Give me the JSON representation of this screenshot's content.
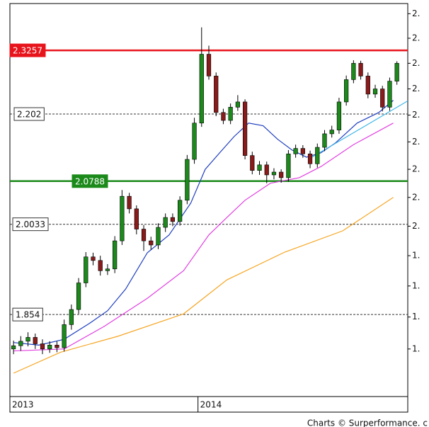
{
  "chart_data": {
    "type": "candlestick",
    "log_scale": true,
    "up_color": "#1b8a1b",
    "down_color": "#8b1a1a",
    "x": [
      1,
      3,
      5,
      7,
      9,
      11,
      13,
      15,
      17,
      19,
      21,
      23,
      25,
      27,
      29,
      31,
      33,
      35,
      37,
      39,
      41,
      43,
      45,
      47,
      49,
      51,
      53,
      55,
      57,
      59,
      61,
      63,
      65,
      67,
      69,
      71,
      73,
      75,
      77,
      79,
      81,
      83,
      85,
      87,
      89,
      91,
      93,
      95,
      97,
      99,
      101,
      103,
      105,
      107
    ],
    "open": [
      1.8,
      1.805,
      1.812,
      1.818,
      1.808,
      1.8,
      1.806,
      1.802,
      1.838,
      1.862,
      1.905,
      1.948,
      1.942,
      1.925,
      1.928,
      1.975,
      2.052,
      2.03,
      1.995,
      1.975,
      1.968,
      1.998,
      2.015,
      2.008,
      2.045,
      2.118,
      2.185,
      2.318,
      2.275,
      2.205,
      2.19,
      2.215,
      2.225,
      2.125,
      2.098,
      2.108,
      2.09,
      2.095,
      2.085,
      2.128,
      2.138,
      2.128,
      2.11,
      2.14,
      2.165,
      2.172,
      2.225,
      2.268,
      2.3,
      2.275,
      2.24,
      2.25,
      2.215,
      2.265
    ],
    "high": [
      1.813,
      1.82,
      1.826,
      1.824,
      1.815,
      1.812,
      1.812,
      1.846,
      1.87,
      1.913,
      1.956,
      1.955,
      1.95,
      1.936,
      1.983,
      2.063,
      2.058,
      2.036,
      2.002,
      1.982,
      2.005,
      2.022,
      2.022,
      2.052,
      2.126,
      2.195,
      2.372,
      2.335,
      2.282,
      2.212,
      2.222,
      2.238,
      2.23,
      2.132,
      2.115,
      2.114,
      2.102,
      2.1,
      2.135,
      2.145,
      2.144,
      2.134,
      2.147,
      2.172,
      2.18,
      2.233,
      2.276,
      2.306,
      2.305,
      2.282,
      2.258,
      2.256,
      2.272,
      2.304
    ],
    "low": [
      1.792,
      1.797,
      1.804,
      1.8,
      1.792,
      1.794,
      1.795,
      1.796,
      1.83,
      1.855,
      1.898,
      1.934,
      1.917,
      1.918,
      1.921,
      1.968,
      2.022,
      1.986,
      1.958,
      1.96,
      1.961,
      1.99,
      2.0,
      2.001,
      2.038,
      2.11,
      2.178,
      2.268,
      2.198,
      2.183,
      2.183,
      2.208,
      2.118,
      2.091,
      2.09,
      2.075,
      2.082,
      2.076,
      2.078,
      2.121,
      2.121,
      2.102,
      2.103,
      2.133,
      2.158,
      2.165,
      2.218,
      2.261,
      2.268,
      2.232,
      2.233,
      2.207,
      2.208,
      2.258
    ],
    "close": [
      1.805,
      1.812,
      1.818,
      1.808,
      1.8,
      1.806,
      1.802,
      1.838,
      1.862,
      1.905,
      1.948,
      1.942,
      1.925,
      1.928,
      1.975,
      2.052,
      2.03,
      1.995,
      1.975,
      1.968,
      1.998,
      2.015,
      2.008,
      2.045,
      2.118,
      2.185,
      2.318,
      2.275,
      2.205,
      2.19,
      2.215,
      2.225,
      2.125,
      2.098,
      2.108,
      2.09,
      2.095,
      2.085,
      2.128,
      2.138,
      2.128,
      2.11,
      2.14,
      2.165,
      2.172,
      2.225,
      2.268,
      2.3,
      2.275,
      2.24,
      2.25,
      2.215,
      2.265,
      2.3
    ],
    "lines": [
      {
        "color": "#1f3fbf",
        "x": [
          1,
          8,
          15,
          22,
          27,
          32,
          38,
          44,
          50,
          54,
          58,
          62,
          66,
          70,
          74,
          78,
          82,
          86,
          90,
          96,
          102,
          106
        ],
        "values": [
          1.81,
          1.806,
          1.815,
          1.84,
          1.86,
          1.895,
          1.955,
          1.985,
          2.04,
          2.1,
          2.13,
          2.16,
          2.185,
          2.18,
          2.155,
          2.135,
          2.122,
          2.13,
          2.148,
          2.185,
          2.205,
          2.228
        ]
      },
      {
        "color": "#e040e0",
        "x": [
          1,
          15,
          26,
          38,
          48,
          55,
          60,
          65,
          72,
          80,
          86,
          95,
          106
        ],
        "values": [
          1.797,
          1.8,
          1.835,
          1.88,
          1.925,
          1.985,
          2.015,
          2.045,
          2.075,
          2.085,
          2.105,
          2.145,
          2.185
        ]
      },
      {
        "color": "#f5a623",
        "x": [
          1,
          14,
          30,
          48,
          60,
          76,
          92,
          106
        ],
        "values": [
          1.763,
          1.795,
          1.82,
          1.855,
          1.91,
          1.956,
          1.992,
          2.05
        ]
      },
      {
        "color": "#3fb6e8",
        "x": [
          83,
          110
        ],
        "values": [
          2.12,
          2.227
        ]
      }
    ],
    "levels": [
      {
        "value": 2.3257,
        "color": "#e8141c",
        "style": "solid"
      },
      {
        "value": 2.202,
        "color": "#333333",
        "style": "dashed"
      },
      {
        "value": 2.0788,
        "color": "#1b8a1b",
        "style": "solid"
      },
      {
        "value": 2.0033,
        "color": "#333333",
        "style": "dashed"
      },
      {
        "value": 1.854,
        "color": "#333333",
        "style": "dashed"
      }
    ],
    "xlim": [
      0,
      110
    ],
    "xticks": [
      {
        "value": 0,
        "label": "2013"
      },
      {
        "value": 52,
        "label": "2014"
      }
    ],
    "ylim": [
      1.728,
      2.421
    ],
    "yticks": [
      {
        "value": 2.4,
        "label": "2."
      },
      {
        "value": 2.35,
        "label": "2."
      },
      {
        "value": 2.3,
        "label": "2."
      },
      {
        "value": 2.25,
        "label": "2."
      },
      {
        "value": 2.2,
        "label": "2."
      },
      {
        "value": 2.15,
        "label": "2."
      },
      {
        "value": 2.1,
        "label": "2."
      },
      {
        "value": 2.05,
        "label": "2."
      },
      {
        "value": 2.0,
        "label": "2."
      },
      {
        "value": 1.95,
        "label": "1."
      },
      {
        "value": 1.9,
        "label": "1."
      },
      {
        "value": 1.85,
        "label": "1."
      },
      {
        "value": 1.8,
        "label": "1."
      }
    ],
    "footer": "Charts © Surperformance. c"
  }
}
